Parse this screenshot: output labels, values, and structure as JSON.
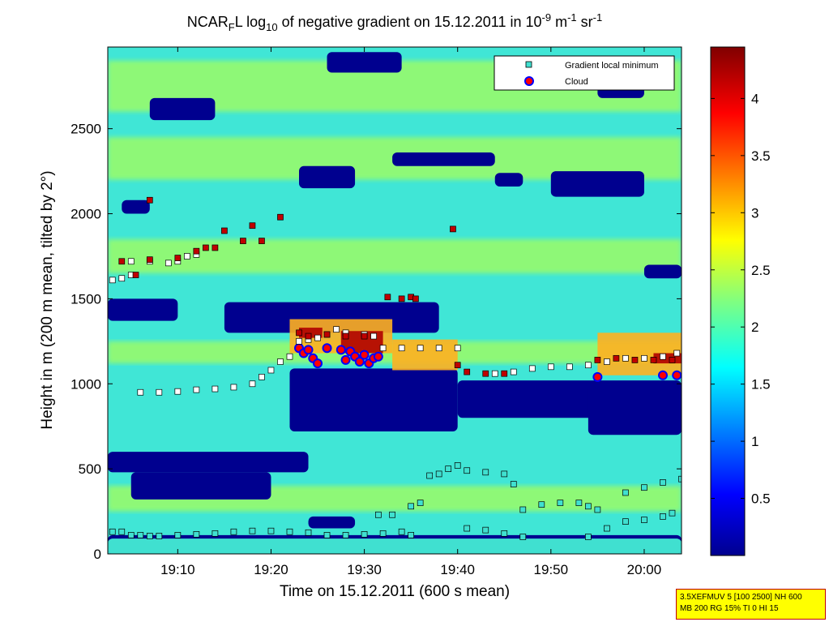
{
  "chart_data": {
    "type": "heatmap",
    "title": "NCAR_FL log10 of negative gradient on 15.12.2011 in 10^-9 m^-1 sr^-1",
    "title_parts": {
      "t1": "NCAR",
      "t1_sub": "F",
      "t2": "L log",
      "t2_sub": "10",
      "t3": " of negative gradient on 15.12.2011 in 10",
      "t3_sup": "-9",
      "t4": " m",
      "t4_sup": "-1",
      "t5": " sr",
      "t5_sup": "-1"
    },
    "xlabel": "Time on 15.12.2011 (600 s mean)",
    "ylabel": "Height in m (200 m mean, tilted by 2°)",
    "x_unit": "time (HH:MM, 15.12.2011)",
    "xlim": [
      "19:02:30",
      "20:04:00"
    ],
    "ylim": [
      0,
      2980
    ],
    "x_ticks": [
      "19:10",
      "19:20",
      "19:30",
      "19:40",
      "19:50",
      "20:00"
    ],
    "y_ticks": [
      0,
      500,
      1000,
      1500,
      2000,
      2500
    ],
    "colorbar": {
      "range": [
        0,
        4.45
      ],
      "ticks": [
        0.5,
        1,
        1.5,
        2,
        2.5,
        3,
        3.5,
        4
      ],
      "colormap": "jet"
    },
    "colors": {
      "jet_low": "#00008f",
      "jet_mid": "#00ffff",
      "jet_high": "#800000",
      "field_background": "#40e6d6",
      "band_green": "#a8ff58",
      "min_marker_fill": "#40e0d0",
      "cloud_fill": "#ff0000",
      "cloud_edge": "#0000ff",
      "upper_layer_fill": "#c00000",
      "layer_fill": "#ffffff"
    },
    "legend": {
      "placement": "top-right",
      "entries": [
        {
          "label": "Gradient local minimum",
          "marker": "square-cyan"
        },
        {
          "label": "Cloud",
          "marker": "circle-red-blue-edge"
        }
      ]
    },
    "field_regions": [
      {
        "kind": "low",
        "t0": "19:02:30",
        "t1": "20:04:00",
        "h0": 0,
        "h1": 110
      },
      {
        "kind": "mid",
        "t0": "19:02:30",
        "t1": "20:04:00",
        "h0": 110,
        "h1": 2980
      },
      {
        "kind": "high",
        "t0": "19:02:30",
        "t1": "20:04:00",
        "h0": 0,
        "h1": 90
      },
      {
        "kind": "green",
        "t0": "19:02:30",
        "t1": "20:04:00",
        "h0": 2600,
        "h1": 2900
      },
      {
        "kind": "green",
        "t0": "19:02:30",
        "t1": "20:04:00",
        "h0": 2200,
        "h1": 2450
      },
      {
        "kind": "green",
        "t0": "19:02:30",
        "t1": "20:04:00",
        "h0": 1650,
        "h1": 1850
      },
      {
        "kind": "green",
        "t0": "19:02:30",
        "t1": "20:04:00",
        "h0": 1120,
        "h1": 1250
      },
      {
        "kind": "green",
        "t0": "19:02:30",
        "t1": "20:04:00",
        "h0": 250,
        "h1": 400
      },
      {
        "kind": "low",
        "t0": "19:02:30",
        "t1": "19:24:00",
        "h0": 480,
        "h1": 600
      },
      {
        "kind": "low",
        "t0": "19:05:00",
        "t1": "19:20:00",
        "h0": 320,
        "h1": 480
      },
      {
        "kind": "low",
        "t0": "19:22:00",
        "t1": "19:40:00",
        "h0": 720,
        "h1": 1090
      },
      {
        "kind": "low",
        "t0": "19:40:00",
        "t1": "20:04:00",
        "h0": 800,
        "h1": 1020
      },
      {
        "kind": "low",
        "t0": "19:54:00",
        "t1": "20:04:00",
        "h0": 700,
        "h1": 1000
      },
      {
        "kind": "low",
        "t0": "19:15:00",
        "t1": "19:38:00",
        "h0": 1300,
        "h1": 1480
      },
      {
        "kind": "low",
        "t0": "19:02:30",
        "t1": "19:10:00",
        "h0": 1370,
        "h1": 1500
      },
      {
        "kind": "low",
        "t0": "19:07:00",
        "t1": "19:14:00",
        "h0": 2550,
        "h1": 2680
      },
      {
        "kind": "low",
        "t0": "19:23:00",
        "t1": "19:29:00",
        "h0": 2150,
        "h1": 2280
      },
      {
        "kind": "low",
        "t0": "19:33:00",
        "t1": "19:44:00",
        "h0": 2280,
        "h1": 2360
      },
      {
        "kind": "low",
        "t0": "19:50:00",
        "t1": "20:00:00",
        "h0": 2100,
        "h1": 2250
      },
      {
        "kind": "low",
        "t0": "19:26:00",
        "t1": "19:34:00",
        "h0": 2830,
        "h1": 2950
      },
      {
        "kind": "low",
        "t0": "20:00:00",
        "t1": "20:04:00",
        "h0": 1620,
        "h1": 1700
      },
      {
        "kind": "low",
        "t0": "19:44:00",
        "t1": "19:47:00",
        "h0": 2160,
        "h1": 2240
      },
      {
        "kind": "low",
        "t0": "19:55:00",
        "t1": "20:00:00",
        "h0": 2680,
        "h1": 2750
      },
      {
        "kind": "low",
        "t0": "19:04:00",
        "t1": "19:07:00",
        "h0": 2000,
        "h1": 2080
      },
      {
        "kind": "low",
        "t0": "19:24:00",
        "t1": "19:29:00",
        "h0": 150,
        "h1": 220
      },
      {
        "kind": "warm",
        "t0": "19:22:00",
        "t1": "19:33:00",
        "h0": 1180,
        "h1": 1380
      },
      {
        "kind": "hot",
        "t0": "19:23:00",
        "t1": "19:25:30",
        "h0": 1270,
        "h1": 1330
      },
      {
        "kind": "hot",
        "t0": "19:27:30",
        "t1": "19:32:00",
        "h0": 1180,
        "h1": 1310
      },
      {
        "kind": "warm",
        "t0": "19:33:00",
        "t1": "19:40:00",
        "h0": 1080,
        "h1": 1260
      },
      {
        "kind": "warm",
        "t0": "19:55:00",
        "t1": "20:04:00",
        "h0": 1050,
        "h1": 1300
      },
      {
        "kind": "hot",
        "t0": "20:01:00",
        "t1": "20:04:00",
        "h0": 1120,
        "h1": 1180
      }
    ],
    "series": [
      {
        "name": "Gradient local minimum",
        "marker": "square-cyan",
        "points": [
          [
            "19:03:00",
            130
          ],
          [
            "19:04:00",
            130
          ],
          [
            "19:05:00",
            110
          ],
          [
            "19:06:00",
            110
          ],
          [
            "19:07:00",
            105
          ],
          [
            "19:08:00",
            105
          ],
          [
            "19:10:00",
            110
          ],
          [
            "19:12:00",
            115
          ],
          [
            "19:14:00",
            120
          ],
          [
            "19:16:00",
            130
          ],
          [
            "19:18:00",
            135
          ],
          [
            "19:20:00",
            135
          ],
          [
            "19:22:00",
            130
          ],
          [
            "19:24:00",
            125
          ],
          [
            "19:26:00",
            110
          ],
          [
            "19:28:00",
            110
          ],
          [
            "19:30:00",
            115
          ],
          [
            "19:32:00",
            120
          ],
          [
            "19:34:00",
            130
          ],
          [
            "19:35:00",
            110
          ],
          [
            "19:31:30",
            230
          ],
          [
            "19:33:00",
            230
          ],
          [
            "19:35:00",
            280
          ],
          [
            "19:36:00",
            300
          ],
          [
            "19:37:00",
            460
          ],
          [
            "19:38:00",
            470
          ],
          [
            "19:39:00",
            500
          ],
          [
            "19:40:00",
            520
          ],
          [
            "19:41:00",
            490
          ],
          [
            "19:43:00",
            480
          ],
          [
            "19:45:00",
            470
          ],
          [
            "19:46:00",
            410
          ],
          [
            "19:41:00",
            150
          ],
          [
            "19:43:00",
            140
          ],
          [
            "19:45:00",
            120
          ],
          [
            "19:47:00",
            100
          ],
          [
            "19:47:00",
            260
          ],
          [
            "19:49:00",
            290
          ],
          [
            "19:51:00",
            300
          ],
          [
            "19:53:00",
            300
          ],
          [
            "19:54:00",
            280
          ],
          [
            "19:55:00",
            260
          ],
          [
            "19:54:00",
            100
          ],
          [
            "19:56:00",
            150
          ],
          [
            "19:58:00",
            190
          ],
          [
            "20:00:00",
            200
          ],
          [
            "20:02:00",
            220
          ],
          [
            "20:03:00",
            240
          ],
          [
            "19:58:00",
            360
          ],
          [
            "20:00:00",
            390
          ],
          [
            "20:02:00",
            420
          ],
          [
            "20:04:00",
            440
          ]
        ]
      },
      {
        "name": "Cloud",
        "marker": "circle-red-blue-edge",
        "points": [
          [
            "19:23:00",
            1210
          ],
          [
            "19:23:30",
            1180
          ],
          [
            "19:24:00",
            1200
          ],
          [
            "19:24:30",
            1150
          ],
          [
            "19:25:00",
            1120
          ],
          [
            "19:26:00",
            1210
          ],
          [
            "19:27:30",
            1200
          ],
          [
            "19:28:00",
            1140
          ],
          [
            "19:28:30",
            1190
          ],
          [
            "19:29:00",
            1160
          ],
          [
            "19:29:30",
            1130
          ],
          [
            "19:30:00",
            1170
          ],
          [
            "19:30:30",
            1120
          ],
          [
            "19:31:00",
            1150
          ],
          [
            "19:31:30",
            1160
          ],
          [
            "19:55:00",
            1040
          ],
          [
            "20:02:00",
            1050
          ],
          [
            "20:03:30",
            1050
          ]
        ]
      },
      {
        "name": "Layer lower boundary",
        "marker": "square-white",
        "points": [
          [
            "19:03:00",
            1610
          ],
          [
            "19:04:00",
            1620
          ],
          [
            "19:05:00",
            1640
          ],
          [
            "19:05:00",
            1720
          ],
          [
            "19:07:00",
            1720
          ],
          [
            "19:09:00",
            1710
          ],
          [
            "19:10:00",
            1720
          ],
          [
            "19:11:00",
            1750
          ],
          [
            "19:12:00",
            1760
          ],
          [
            "19:06:00",
            950
          ],
          [
            "19:08:00",
            950
          ],
          [
            "19:10:00",
            955
          ],
          [
            "19:12:00",
            965
          ],
          [
            "19:14:00",
            970
          ],
          [
            "19:16:00",
            980
          ],
          [
            "19:18:00",
            1000
          ],
          [
            "19:19:00",
            1040
          ],
          [
            "19:20:00",
            1080
          ],
          [
            "19:21:00",
            1130
          ],
          [
            "19:22:00",
            1160
          ],
          [
            "19:23:00",
            1250
          ],
          [
            "19:24:00",
            1260
          ],
          [
            "19:25:00",
            1270
          ],
          [
            "19:26:00",
            1290
          ],
          [
            "19:27:00",
            1320
          ],
          [
            "19:28:00",
            1300
          ],
          [
            "19:30:00",
            1290
          ],
          [
            "19:31:00",
            1280
          ],
          [
            "19:32:00",
            1210
          ],
          [
            "19:34:00",
            1210
          ],
          [
            "19:36:00",
            1210
          ],
          [
            "19:38:00",
            1210
          ],
          [
            "19:40:00",
            1210
          ],
          [
            "19:44:00",
            1060
          ],
          [
            "19:46:00",
            1070
          ],
          [
            "19:48:00",
            1090
          ],
          [
            "19:50:00",
            1100
          ],
          [
            "19:52:00",
            1100
          ],
          [
            "19:54:00",
            1110
          ],
          [
            "19:56:00",
            1130
          ],
          [
            "19:58:00",
            1150
          ],
          [
            "20:00:00",
            1150
          ],
          [
            "20:02:00",
            1160
          ],
          [
            "20:03:30",
            1180
          ]
        ]
      },
      {
        "name": "Layer upper boundary",
        "marker": "square-red",
        "points": [
          [
            "19:04:00",
            1720
          ],
          [
            "19:07:00",
            1730
          ],
          [
            "19:10:00",
            1740
          ],
          [
            "19:12:00",
            1780
          ],
          [
            "19:13:00",
            1800
          ],
          [
            "19:14:00",
            1800
          ],
          [
            "19:05:30",
            1640
          ],
          [
            "19:07:00",
            2080
          ],
          [
            "19:15:00",
            1900
          ],
          [
            "19:17:00",
            1840
          ],
          [
            "19:18:00",
            1930
          ],
          [
            "19:19:00",
            1840
          ],
          [
            "19:21:00",
            1980
          ],
          [
            "19:32:30",
            1510
          ],
          [
            "19:34:00",
            1500
          ],
          [
            "19:35:00",
            1510
          ],
          [
            "19:35:30",
            1500
          ],
          [
            "19:39:30",
            1910
          ],
          [
            "19:23:00",
            1300
          ],
          [
            "19:24:00",
            1280
          ],
          [
            "19:26:00",
            1290
          ],
          [
            "19:28:00",
            1280
          ],
          [
            "19:30:00",
            1280
          ],
          [
            "19:40:00",
            1110
          ],
          [
            "19:41:00",
            1070
          ],
          [
            "19:43:00",
            1060
          ],
          [
            "19:45:00",
            1060
          ],
          [
            "19:55:00",
            1140
          ],
          [
            "19:57:00",
            1150
          ],
          [
            "19:59:00",
            1140
          ],
          [
            "20:01:00",
            1140
          ],
          [
            "20:03:00",
            1140
          ]
        ]
      }
    ]
  },
  "stamp": {
    "line1": "3.5XEFMUV 5 [100 2500] NH 600",
    "line2": "MB 200 RG 15% TI 0 HI 15"
  }
}
